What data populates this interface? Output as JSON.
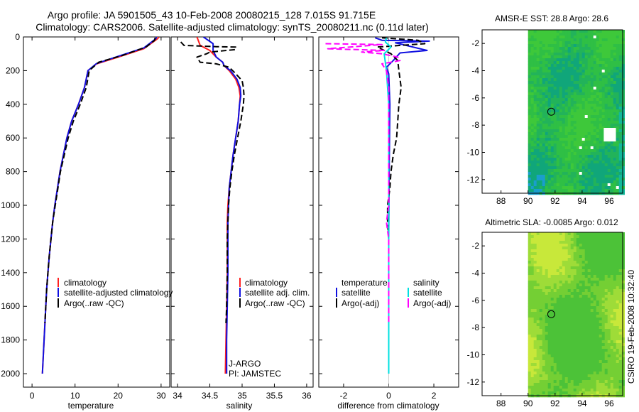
{
  "header": {
    "line1": "Argo profile: JA 5901505_43 10-Feb-2008 20080215_128 7.015S 91.715E",
    "line2": "Climatology: CARS2006. Satellite-adjusted climatology: synTS_20080211.nc (0.11d later)"
  },
  "side_stamp": "CSIRO 19-Feb-2008 10:32:40",
  "credits": {
    "line1": "J-ARGO",
    "line2": "PI: JAMSTEC"
  },
  "colors": {
    "clim": "#ff2020",
    "sat": "#1010e0",
    "argo": "#000000",
    "sal_sat": "#00e0e0",
    "sal_argo": "#ff00ff"
  },
  "chart_data": [
    {
      "type": "line",
      "name": "temperature profile",
      "xlabel": "temperature",
      "ylabel": "",
      "xlim": [
        -2,
        32
      ],
      "ylim": [
        2080,
        0
      ],
      "xticks": [
        0,
        10,
        20,
        30
      ],
      "yticks": [
        0,
        200,
        400,
        600,
        800,
        1000,
        1200,
        1400,
        1600,
        1800,
        2000
      ],
      "legend": [
        "climatology",
        "satellite-adjusted climatology",
        "Argo(..raw -QC)"
      ],
      "series": [
        {
          "name": "climatology",
          "color": "#ff2020",
          "dash": "",
          "points": [
            [
              29.5,
              0
            ],
            [
              29.2,
              10
            ],
            [
              26,
              70
            ],
            [
              20,
              120
            ],
            [
              15,
              160
            ],
            [
              13,
              200
            ],
            [
              12.2,
              300
            ],
            [
              10.8,
              400
            ],
            [
              9.2,
              500
            ],
            [
              8.1,
              600
            ],
            [
              7.3,
              700
            ],
            [
              6.5,
              800
            ],
            [
              5.9,
              900
            ],
            [
              5.3,
              1000
            ],
            [
              4.8,
              1100
            ],
            [
              4.4,
              1200
            ],
            [
              4.0,
              1300
            ],
            [
              3.7,
              1400
            ],
            [
              3.4,
              1500
            ],
            [
              3.2,
              1600
            ],
            [
              3.0,
              1700
            ],
            [
              2.8,
              1800
            ],
            [
              2.6,
              1900
            ],
            [
              2.4,
              2000
            ]
          ]
        },
        {
          "name": "satellite-adjusted climatology",
          "color": "#1010e0",
          "dash": "",
          "points": [
            [
              28.9,
              0
            ],
            [
              28.8,
              10
            ],
            [
              26,
              65
            ],
            [
              20,
              115
            ],
            [
              15,
              158
            ],
            [
              13,
              200
            ],
            [
              12.2,
              300
            ],
            [
              10.8,
              400
            ],
            [
              9.2,
              500
            ],
            [
              8.1,
              600
            ],
            [
              7.3,
              700
            ],
            [
              6.5,
              800
            ],
            [
              5.9,
              900
            ],
            [
              5.3,
              1000
            ],
            [
              4.8,
              1100
            ],
            [
              4.4,
              1200
            ],
            [
              4.0,
              1300
            ],
            [
              3.7,
              1400
            ],
            [
              3.4,
              1500
            ],
            [
              3.2,
              1600
            ],
            [
              3.0,
              1700
            ],
            [
              2.8,
              1800
            ],
            [
              2.6,
              1900
            ],
            [
              2.4,
              2000
            ]
          ]
        },
        {
          "name": "Argo(..raw -QC)",
          "color": "#000000",
          "dash": "8,4",
          "points": [
            [
              28.6,
              5
            ],
            [
              28.5,
              20
            ],
            [
              26.5,
              60
            ],
            [
              21,
              110
            ],
            [
              15.5,
              150
            ],
            [
              13.3,
              200
            ],
            [
              12.6,
              300
            ],
            [
              11.2,
              400
            ],
            [
              9.6,
              500
            ],
            [
              8.4,
              600
            ],
            [
              7.5,
              700
            ],
            [
              6.6,
              800
            ],
            [
              6.0,
              900
            ],
            [
              5.4,
              1000
            ],
            [
              4.8,
              1100
            ],
            [
              4.4,
              1200
            ],
            [
              4.0,
              1300
            ],
            [
              3.7,
              1400
            ],
            [
              3.4,
              1500
            ],
            [
              3.2,
              1600
            ],
            [
              3.0,
              1700
            ]
          ]
        }
      ]
    },
    {
      "type": "line",
      "name": "salinity profile",
      "xlabel": "salinity",
      "ylabel": "",
      "xlim": [
        33.9,
        36.1
      ],
      "ylim": [
        2080,
        0
      ],
      "xticks": [
        34,
        34.5,
        35,
        35.5,
        36
      ],
      "yticks": [],
      "legend": [
        "climatology",
        "satellite adj. clim.",
        "Argo(..raw -QC)"
      ],
      "series": [
        {
          "name": "climatology",
          "color": "#ff2020",
          "dash": "",
          "points": [
            [
              34.3,
              0
            ],
            [
              34.35,
              50
            ],
            [
              34.5,
              80
            ],
            [
              34.6,
              120
            ],
            [
              34.7,
              150
            ],
            [
              34.72,
              170
            ],
            [
              34.8,
              200
            ],
            [
              34.9,
              250
            ],
            [
              34.95,
              300
            ],
            [
              34.97,
              350
            ],
            [
              34.96,
              400
            ],
            [
              34.94,
              500
            ],
            [
              34.9,
              600
            ],
            [
              34.86,
              700
            ],
            [
              34.83,
              800
            ],
            [
              34.8,
              900
            ],
            [
              34.78,
              1000
            ],
            [
              34.77,
              1100
            ],
            [
              34.77,
              1200
            ],
            [
              34.77,
              1400
            ],
            [
              34.76,
              1600
            ],
            [
              34.75,
              1800
            ],
            [
              34.74,
              2000
            ]
          ]
        },
        {
          "name": "satellite adj. clim.",
          "color": "#1010e0",
          "dash": "",
          "points": [
            [
              34.4,
              0
            ],
            [
              34.55,
              40
            ],
            [
              34.55,
              80
            ],
            [
              34.6,
              120
            ],
            [
              34.7,
              150
            ],
            [
              34.72,
              170
            ],
            [
              34.82,
              200
            ],
            [
              34.92,
              250
            ],
            [
              34.97,
              300
            ],
            [
              34.98,
              350
            ],
            [
              34.96,
              400
            ],
            [
              34.94,
              500
            ],
            [
              34.9,
              600
            ],
            [
              34.86,
              700
            ],
            [
              34.83,
              800
            ],
            [
              34.8,
              900
            ],
            [
              34.79,
              1000
            ],
            [
              34.78,
              1100
            ],
            [
              34.78,
              1200
            ],
            [
              34.78,
              1400
            ],
            [
              34.77,
              1600
            ],
            [
              34.76,
              1800
            ],
            [
              34.76,
              2000
            ]
          ]
        },
        {
          "name": "Argo(..raw -QC)",
          "color": "#000000",
          "dash": "8,4",
          "points": [
            [
              34.05,
              30
            ],
            [
              34.1,
              50
            ],
            [
              34.6,
              58
            ],
            [
              34.9,
              60
            ],
            [
              34.9,
              75
            ],
            [
              34.5,
              90
            ],
            [
              34.45,
              100
            ],
            [
              34.3,
              120
            ],
            [
              34.35,
              150
            ],
            [
              34.6,
              160
            ],
            [
              34.8,
              180
            ],
            [
              34.88,
              210
            ],
            [
              35.0,
              260
            ],
            [
              35.02,
              300
            ],
            [
              35.03,
              350
            ],
            [
              35.02,
              400
            ],
            [
              34.98,
              500
            ],
            [
              34.93,
              600
            ],
            [
              34.88,
              700
            ],
            [
              34.84,
              800
            ],
            [
              34.81,
              900
            ],
            [
              34.79,
              1000
            ],
            [
              34.78,
              1100
            ],
            [
              34.77,
              1200
            ],
            [
              34.77,
              1400
            ],
            [
              34.76,
              1600
            ],
            [
              34.75,
              1700
            ]
          ]
        }
      ]
    },
    {
      "type": "line",
      "name": "difference from climatology",
      "xlabel": "difference from climatology",
      "ylabel": "",
      "xlim": [
        -3.1,
        3.1
      ],
      "ylim": [
        2080,
        0
      ],
      "xticks": [
        -2,
        0,
        2
      ],
      "yticks": [],
      "legend_temperature_title": "temperature",
      "legend_salinity_title": "salinity",
      "legend_temperature": [
        "satellite",
        "Argo(-adj)"
      ],
      "legend_salinity": [
        "satellite",
        "Argo(-adj)"
      ],
      "series": [
        {
          "name": "temperature satellite",
          "color": "#1010e0",
          "dash": "",
          "points": [
            [
              -0.6,
              5
            ],
            [
              -0.3,
              20
            ],
            [
              1.8,
              25
            ],
            [
              0.3,
              35
            ],
            [
              1.7,
              80
            ],
            [
              0.5,
              95
            ],
            [
              0.2,
              140
            ],
            [
              -0.1,
              180
            ],
            [
              0,
              220
            ],
            [
              0.05,
              400
            ],
            [
              0.02,
              800
            ],
            [
              0,
              1200
            ],
            [
              0,
              2000
            ]
          ]
        },
        {
          "name": "temperature Argo(-adj)",
          "color": "#000000",
          "dash": "8,4",
          "points": [
            [
              -0.3,
              5
            ],
            [
              1.3,
              20
            ],
            [
              1.6,
              40
            ],
            [
              -0.5,
              60
            ],
            [
              0.1,
              100
            ],
            [
              0.4,
              140
            ],
            [
              0.45,
              200
            ],
            [
              0.55,
              300
            ],
            [
              0.45,
              400
            ],
            [
              0.4,
              500
            ],
            [
              0.35,
              600
            ],
            [
              0.2,
              700
            ],
            [
              0.1,
              800
            ],
            [
              0.05,
              900
            ],
            [
              -0.05,
              1000
            ],
            [
              -0.05,
              1100
            ],
            [
              0,
              1200
            ],
            [
              0,
              1400
            ],
            [
              0,
              1600
            ]
          ]
        },
        {
          "name": "salinity satellite",
          "color": "#00e0e0",
          "dash": "",
          "points": [
            [
              -0.1,
              5
            ],
            [
              -0.15,
              30
            ],
            [
              0.1,
              60
            ],
            [
              -0.2,
              100
            ],
            [
              -0.1,
              200
            ],
            [
              0,
              400
            ],
            [
              0,
              800
            ],
            [
              0,
              1200
            ],
            [
              0,
              2000
            ]
          ]
        },
        {
          "name": "salinity Argo(-adj)",
          "color": "#ff00ff",
          "dash": "8,4",
          "points": [
            [
              -2.8,
              40
            ],
            [
              -0.3,
              45
            ],
            [
              -2.7,
              70
            ],
            [
              -0.2,
              80
            ],
            [
              -1.2,
              90
            ],
            [
              -0.3,
              100
            ],
            [
              0.4,
              120
            ],
            [
              0.5,
              140
            ],
            [
              -0.3,
              160
            ],
            [
              -0.1,
              200
            ],
            [
              0,
              300
            ],
            [
              0,
              1000
            ],
            [
              -0.1,
              1100
            ],
            [
              0,
              1200
            ],
            [
              0,
              1700
            ]
          ]
        }
      ]
    },
    {
      "type": "heatmap",
      "name": "AMSR-E SST map",
      "title": "AMSR-E SST: 28.8 Argo: 28.6",
      "xlim": [
        86.6,
        97.0
      ],
      "ylim": [
        -13.0,
        -1.0
      ],
      "xticks": [
        88,
        90,
        92,
        94,
        96
      ],
      "yticks": [
        -2,
        -4,
        -6,
        -8,
        -10,
        -12
      ],
      "data_xmin": 90.0,
      "argo_location": [
        91.715,
        -7.015
      ],
      "white_patch": [
        [
          95.6,
          -8.2
        ],
        [
          96.5,
          -9.2
        ]
      ]
    },
    {
      "type": "heatmap",
      "name": "Altimetric SLA map",
      "title": "Altimetric SLA: -0.0085 Argo: 0.012",
      "xlim": [
        86.6,
        97.0
      ],
      "ylim": [
        -13.0,
        -1.0
      ],
      "xticks": [
        88,
        90,
        92,
        94,
        96
      ],
      "yticks": [
        -2,
        -4,
        -6,
        -8,
        -10,
        -12
      ],
      "data_xmin": 90.0,
      "argo_location": [
        91.715,
        -7.015
      ]
    }
  ]
}
